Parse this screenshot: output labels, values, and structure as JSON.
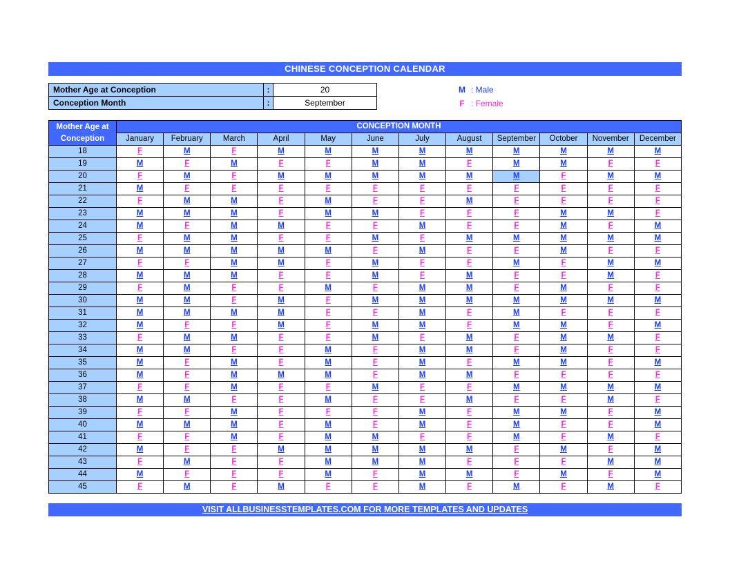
{
  "title": "CHINESE CONCEPTION CALENDAR",
  "inputs": {
    "age_label": "Mother Age at Conception",
    "month_label": "Conception Month",
    "age_value": "20",
    "month_value": "September"
  },
  "legend": {
    "m_sym": "M",
    "m_text": ": Male",
    "f_sym": "F",
    "f_text": ": Female"
  },
  "headers": {
    "age": "Mother Age at Conception",
    "super": "CONCEPTION MONTH",
    "months": [
      "January",
      "February",
      "March",
      "April",
      "May",
      "June",
      "July",
      "August",
      "September",
      "October",
      "November",
      "December"
    ]
  },
  "highlight": {
    "age": "20",
    "month_index": 8
  },
  "ages": [
    "18",
    "19",
    "20",
    "21",
    "22",
    "23",
    "24",
    "25",
    "26",
    "27",
    "28",
    "29",
    "30",
    "31",
    "32",
    "33",
    "34",
    "35",
    "36",
    "37",
    "38",
    "39",
    "40",
    "41",
    "42",
    "43",
    "44",
    "45"
  ],
  "grid": [
    [
      "F",
      "M",
      "F",
      "M",
      "M",
      "M",
      "M",
      "M",
      "M",
      "M",
      "M",
      "M"
    ],
    [
      "M",
      "F",
      "M",
      "F",
      "F",
      "M",
      "M",
      "F",
      "M",
      "M",
      "F",
      "F"
    ],
    [
      "F",
      "M",
      "F",
      "M",
      "M",
      "M",
      "M",
      "M",
      "M",
      "F",
      "M",
      "M"
    ],
    [
      "M",
      "F",
      "F",
      "F",
      "F",
      "F",
      "F",
      "F",
      "F",
      "F",
      "F",
      "F"
    ],
    [
      "F",
      "M",
      "M",
      "F",
      "M",
      "F",
      "F",
      "M",
      "F",
      "F",
      "F",
      "F"
    ],
    [
      "M",
      "M",
      "M",
      "F",
      "M",
      "M",
      "F",
      "F",
      "F",
      "M",
      "M",
      "F"
    ],
    [
      "M",
      "F",
      "M",
      "M",
      "F",
      "F",
      "M",
      "F",
      "F",
      "M",
      "F",
      "M"
    ],
    [
      "F",
      "M",
      "M",
      "F",
      "F",
      "M",
      "F",
      "M",
      "M",
      "M",
      "M",
      "M"
    ],
    [
      "M",
      "M",
      "M",
      "M",
      "M",
      "F",
      "M",
      "F",
      "F",
      "M",
      "F",
      "F"
    ],
    [
      "F",
      "F",
      "M",
      "M",
      "F",
      "M",
      "F",
      "F",
      "M",
      "F",
      "M",
      "M"
    ],
    [
      "M",
      "M",
      "M",
      "F",
      "F",
      "M",
      "F",
      "M",
      "F",
      "F",
      "M",
      "F"
    ],
    [
      "F",
      "M",
      "F",
      "F",
      "M",
      "F",
      "M",
      "M",
      "F",
      "M",
      "F",
      "F"
    ],
    [
      "M",
      "M",
      "F",
      "M",
      "F",
      "M",
      "M",
      "M",
      "M",
      "M",
      "M",
      "M"
    ],
    [
      "M",
      "M",
      "M",
      "M",
      "F",
      "F",
      "M",
      "F",
      "M",
      "F",
      "F",
      "F"
    ],
    [
      "M",
      "F",
      "F",
      "M",
      "F",
      "M",
      "M",
      "F",
      "M",
      "M",
      "F",
      "M"
    ],
    [
      "F",
      "M",
      "M",
      "F",
      "F",
      "M",
      "F",
      "M",
      "F",
      "M",
      "M",
      "F"
    ],
    [
      "M",
      "M",
      "F",
      "F",
      "M",
      "F",
      "M",
      "M",
      "F",
      "M",
      "F",
      "F"
    ],
    [
      "M",
      "F",
      "M",
      "F",
      "M",
      "F",
      "M",
      "F",
      "M",
      "M",
      "F",
      "M"
    ],
    [
      "M",
      "F",
      "M",
      "M",
      "M",
      "F",
      "M",
      "M",
      "F",
      "F",
      "F",
      "F"
    ],
    [
      "F",
      "F",
      "M",
      "F",
      "F",
      "M",
      "F",
      "F",
      "M",
      "M",
      "M",
      "M"
    ],
    [
      "M",
      "M",
      "F",
      "F",
      "M",
      "F",
      "F",
      "M",
      "F",
      "F",
      "M",
      "F"
    ],
    [
      "F",
      "F",
      "M",
      "F",
      "F",
      "F",
      "M",
      "F",
      "M",
      "M",
      "F",
      "M"
    ],
    [
      "M",
      "M",
      "M",
      "F",
      "M",
      "F",
      "M",
      "F",
      "M",
      "F",
      "F",
      "M"
    ],
    [
      "F",
      "F",
      "M",
      "F",
      "M",
      "M",
      "F",
      "F",
      "M",
      "F",
      "M",
      "F"
    ],
    [
      "M",
      "F",
      "F",
      "M",
      "M",
      "M",
      "M",
      "M",
      "F",
      "M",
      "F",
      "M"
    ],
    [
      "F",
      "M",
      "F",
      "F",
      "M",
      "M",
      "M",
      "F",
      "F",
      "F",
      "M",
      "M"
    ],
    [
      "M",
      "F",
      "F",
      "F",
      "M",
      "F",
      "M",
      "M",
      "F",
      "M",
      "F",
      "M"
    ],
    [
      "F",
      "M",
      "F",
      "M",
      "F",
      "F",
      "M",
      "F",
      "M",
      "F",
      "M",
      "F"
    ]
  ],
  "footer": "VISIT ALLBUSINESSTEMPLATES.COM FOR MORE TEMPLATES AND UPDATES",
  "colors": {
    "primary": "#4169ff",
    "light": "#a6d0ff",
    "male": "#1a3cff",
    "female": "#ff29d6",
    "border": "#000000",
    "bg": "#ffffff"
  }
}
